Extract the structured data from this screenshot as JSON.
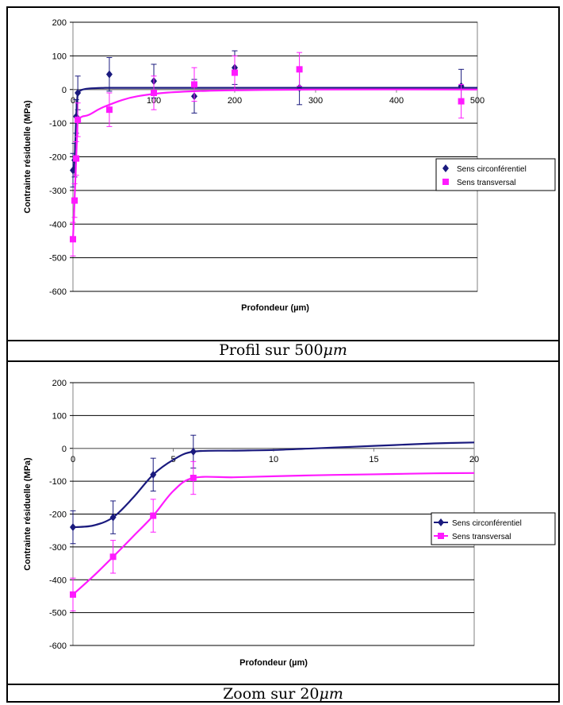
{
  "colors": {
    "circ": "#1a1a7e",
    "trans": "#ff1aff",
    "grid": "#000000",
    "axis": "#808080"
  },
  "captions": {
    "top_prefix": "Profil sur ",
    "top_value": "500",
    "top_unit": "μm",
    "bottom_prefix": "Zoom sur ",
    "bottom_value": "20",
    "bottom_unit": "μm"
  },
  "chart_data": [
    {
      "type": "scatter",
      "xlabel": "Profondeur (µm)",
      "ylabel": "Contrainte résiduelle (MPa)",
      "xlim": [
        0,
        500
      ],
      "ylim": [
        -600,
        200
      ],
      "x_ticks": [
        0,
        100,
        200,
        300,
        400,
        500
      ],
      "y_ticks": [
        200,
        100,
        0,
        -100,
        -200,
        -300,
        -400,
        -500,
        -600
      ],
      "grid": true,
      "legend_position": "right",
      "series": [
        {
          "name": "Sens circonférentiel",
          "marker": "diamond",
          "x": [
            0,
            2,
            4,
            6,
            45,
            100,
            150,
            200,
            280,
            480
          ],
          "y": [
            -240,
            -210,
            -80,
            -10,
            45,
            25,
            -20,
            65,
            5,
            10
          ],
          "err": [
            50,
            50,
            50,
            50,
            50,
            50,
            50,
            50,
            50,
            50
          ],
          "fit_x": [
            0,
            1,
            2,
            3,
            4,
            5,
            6,
            8,
            12,
            20,
            40,
            80,
            150,
            300,
            500
          ],
          "fit_y": [
            -240,
            -236,
            -210,
            -150,
            -80,
            -40,
            -10,
            -5,
            0,
            3,
            5,
            5,
            5,
            5,
            5
          ]
        },
        {
          "name": "Sens transversal",
          "marker": "square",
          "x": [
            0,
            2,
            4,
            6,
            45,
            100,
            150,
            200,
            280,
            480
          ],
          "y": [
            -445,
            -330,
            -205,
            -90,
            -60,
            -10,
            15,
            50,
            60,
            -35
          ],
          "err": [
            50,
            50,
            50,
            50,
            50,
            50,
            50,
            50,
            50,
            50
          ],
          "fit_x": [
            0,
            1,
            2,
            3,
            4,
            5,
            6,
            8,
            12,
            20,
            40,
            80,
            150,
            300,
            500
          ],
          "fit_y": [
            -445,
            -390,
            -330,
            -265,
            -205,
            -140,
            -90,
            -85,
            -80,
            -75,
            -50,
            -20,
            -5,
            0,
            0
          ]
        }
      ]
    },
    {
      "type": "line",
      "xlabel": "Profondeur (µm)",
      "ylabel": "Contrainte résiduelle (MPa)",
      "xlim": [
        0,
        20
      ],
      "ylim": [
        -600,
        200
      ],
      "x_ticks": [
        0,
        5,
        10,
        15,
        20
      ],
      "y_ticks": [
        200,
        100,
        0,
        -100,
        -200,
        -300,
        -400,
        -500,
        -600
      ],
      "grid": true,
      "legend_position": "right",
      "series": [
        {
          "name": "Sens circonférentiel",
          "marker": "diamond",
          "x": [
            0,
            2,
            4,
            6
          ],
          "y": [
            -240,
            -210,
            -80,
            -10
          ],
          "err": [
            50,
            50,
            50,
            50
          ],
          "fit_x": [
            0,
            1,
            2,
            3,
            4,
            5,
            6,
            8,
            10,
            12,
            14,
            16,
            18,
            20
          ],
          "fit_y": [
            -240,
            -235,
            -210,
            -150,
            -80,
            -35,
            -10,
            -7,
            -5,
            0,
            5,
            10,
            15,
            18
          ]
        },
        {
          "name": "Sens transversal",
          "marker": "square",
          "x": [
            0,
            2,
            4,
            6
          ],
          "y": [
            -445,
            -330,
            -205,
            -90
          ],
          "err": [
            50,
            50,
            50,
            50
          ],
          "fit_x": [
            0,
            1,
            2,
            3,
            4,
            5,
            6,
            8,
            10,
            12,
            14,
            16,
            18,
            20
          ],
          "fit_y": [
            -445,
            -390,
            -330,
            -268,
            -205,
            -130,
            -90,
            -88,
            -85,
            -82,
            -80,
            -78,
            -76,
            -75
          ]
        }
      ]
    }
  ]
}
